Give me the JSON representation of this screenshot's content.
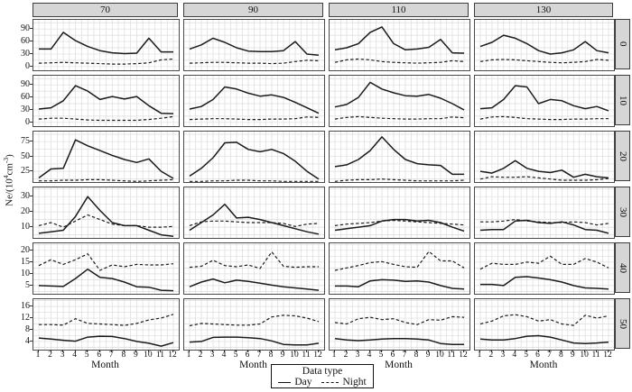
{
  "figure": {
    "ylabel": {
      "pre": "Ne/(10",
      "exp": "4",
      "mid": "cm",
      "exp2": "-3",
      "post": ")"
    },
    "xlabel": "Month",
    "col_headers": [
      "70",
      "90",
      "110",
      "130"
    ],
    "row_headers": [
      "0",
      "10",
      "20",
      "30",
      "40",
      "50"
    ],
    "legend": {
      "title": "Data type",
      "items": [
        {
          "label": "Day",
          "style": "solid"
        },
        {
          "label": "Night",
          "style": "dashed"
        }
      ]
    }
  },
  "colors": {
    "line": "#1b1b1b",
    "grid": "#dcdcdc",
    "strip_bg": "#d6d6d6",
    "panel_border": "#4a4a4a"
  },
  "chart_data": {
    "type": "line",
    "x": [
      1,
      2,
      3,
      4,
      5,
      6,
      7,
      8,
      9,
      10,
      11,
      12
    ],
    "xlabel": "Month",
    "ylabel": "Ne/(10^4 cm^-3)",
    "facet_cols": [
      "70",
      "90",
      "110",
      "130"
    ],
    "facet_rows": [
      "0",
      "10",
      "20",
      "30",
      "40",
      "50"
    ],
    "legend_position": "bottom",
    "grid": true,
    "row_axes": [
      {
        "ticks": [
          0,
          30,
          60,
          90
        ],
        "ylim": [
          -9,
          112
        ]
      },
      {
        "ticks": [
          0,
          30,
          60,
          90
        ],
        "ylim": [
          -9,
          112
        ]
      },
      {
        "ticks": [
          25,
          50,
          75
        ],
        "ylim": [
          7,
          92
        ]
      },
      {
        "ticks": [
          10,
          20,
          30
        ],
        "ylim": [
          3,
          36
        ]
      },
      {
        "ticks": [
          5,
          10,
          15,
          20
        ],
        "ylim": [
          1.5,
          23
        ]
      },
      {
        "ticks": [
          4,
          8,
          12,
          16
        ],
        "ylim": [
          1.2,
          18.5
        ]
      }
    ],
    "facets": [
      {
        "row": "0",
        "col": "70",
        "day": [
          42,
          42,
          82,
          62,
          48,
          38,
          33,
          31,
          32,
          68,
          35,
          35
        ],
        "night": [
          8,
          9,
          10,
          9,
          8,
          7,
          6,
          6,
          7,
          9,
          16,
          18
        ]
      },
      {
        "row": "0",
        "col": "90",
        "day": [
          42,
          52,
          68,
          58,
          45,
          37,
          36,
          36,
          38,
          60,
          30,
          27
        ],
        "night": [
          8,
          9,
          10,
          10,
          9,
          8,
          8,
          7,
          8,
          12,
          15,
          14
        ]
      },
      {
        "row": "0",
        "col": "110",
        "day": [
          40,
          45,
          55,
          82,
          95,
          55,
          40,
          42,
          46,
          65,
          33,
          32
        ],
        "night": [
          10,
          16,
          18,
          16,
          12,
          10,
          9,
          8,
          9,
          10,
          14,
          12
        ]
      },
      {
        "row": "0",
        "col": "130",
        "day": [
          48,
          58,
          75,
          68,
          55,
          38,
          30,
          33,
          40,
          60,
          38,
          33
        ],
        "night": [
          12,
          16,
          17,
          16,
          14,
          12,
          10,
          9,
          10,
          12,
          17,
          15
        ]
      },
      {
        "row": "10",
        "col": "70",
        "day": [
          32,
          35,
          52,
          88,
          75,
          55,
          62,
          56,
          62,
          40,
          22,
          21
        ],
        "night": [
          8,
          10,
          10,
          8,
          6,
          5,
          5,
          5,
          5,
          7,
          10,
          14
        ]
      },
      {
        "row": "10",
        "col": "90",
        "day": [
          32,
          38,
          55,
          85,
          80,
          70,
          63,
          66,
          60,
          48,
          35,
          22
        ],
        "night": [
          7,
          8,
          9,
          9,
          8,
          7,
          7,
          8,
          8,
          9,
          13,
          12
        ]
      },
      {
        "row": "10",
        "col": "110",
        "day": [
          37,
          43,
          60,
          96,
          80,
          71,
          64,
          63,
          67,
          58,
          45,
          30
        ],
        "night": [
          8,
          12,
          14,
          12,
          10,
          9,
          8,
          8,
          9,
          9,
          13,
          11
        ]
      },
      {
        "row": "10",
        "col": "130",
        "day": [
          33,
          35,
          55,
          88,
          85,
          45,
          55,
          52,
          40,
          33,
          38,
          28
        ],
        "night": [
          8,
          13,
          14,
          12,
          9,
          8,
          7,
          7,
          8,
          8,
          9,
          9
        ]
      },
      {
        "row": "20",
        "col": "70",
        "day": [
          14,
          29,
          30,
          78,
          68,
          60,
          52,
          45,
          40,
          46,
          25,
          13
        ],
        "night": [
          9,
          9,
          10,
          10,
          11,
          11,
          10,
          9,
          8,
          9,
          10,
          11
        ]
      },
      {
        "row": "20",
        "col": "90",
        "day": [
          17,
          30,
          48,
          73,
          74,
          62,
          58,
          62,
          55,
          42,
          25,
          12
        ],
        "night": [
          8,
          8,
          9,
          9,
          10,
          10,
          9,
          9,
          8,
          8,
          8,
          8
        ]
      },
      {
        "row": "20",
        "col": "110",
        "day": [
          33,
          36,
          45,
          60,
          83,
          62,
          45,
          38,
          36,
          35,
          20,
          20
        ],
        "night": [
          8,
          10,
          11,
          11,
          12,
          11,
          10,
          9,
          9,
          9,
          9,
          10
        ]
      },
      {
        "row": "20",
        "col": "130",
        "day": [
          25,
          22,
          30,
          43,
          30,
          25,
          23,
          27,
          15,
          20,
          16,
          14
        ],
        "night": [
          12,
          16,
          15,
          15,
          16,
          14,
          12,
          10,
          10,
          10,
          11,
          13
        ]
      },
      {
        "row": "30",
        "col": "70",
        "day": [
          6,
          7,
          8,
          17,
          30,
          21,
          13,
          11,
          11,
          8,
          5,
          4
        ],
        "night": [
          11,
          13,
          10,
          14,
          18,
          15,
          12,
          11,
          11,
          10,
          10,
          10.5
        ]
      },
      {
        "row": "30",
        "col": "90",
        "day": [
          8,
          13,
          18,
          25,
          16,
          16.5,
          15,
          13,
          11,
          9,
          7,
          5.5
        ],
        "night": [
          11,
          13.5,
          14,
          14,
          13.5,
          13,
          13,
          13,
          12.5,
          10.5,
          12,
          12.5
        ]
      },
      {
        "row": "30",
        "col": "110",
        "day": [
          8,
          9,
          10,
          11,
          14,
          15,
          15,
          14,
          14.5,
          13,
          10,
          7.5
        ],
        "night": [
          11,
          12,
          12.5,
          13,
          14,
          14.5,
          14,
          13.5,
          13,
          12.5,
          12,
          11.5
        ]
      },
      {
        "row": "30",
        "col": "130",
        "day": [
          8,
          8.5,
          8.5,
          14,
          14.5,
          13,
          12.5,
          13.5,
          11.5,
          8.5,
          8,
          6
        ],
        "night": [
          13.5,
          13.5,
          14,
          15,
          14,
          13.5,
          13,
          13,
          13.5,
          13,
          11.5,
          12.5
        ]
      },
      {
        "row": "40",
        "col": "70",
        "day": [
          5,
          4.8,
          4.6,
          8,
          12,
          8.5,
          8,
          6.5,
          4.5,
          4.3,
          3,
          2.8
        ],
        "night": [
          13.5,
          16,
          14,
          16,
          18.5,
          11.5,
          13.8,
          13,
          14,
          13.8,
          13.8,
          14.3
        ]
      },
      {
        "row": "40",
        "col": "90",
        "day": [
          4.5,
          6.5,
          7.8,
          6.2,
          7.3,
          6.8,
          6,
          5.2,
          4.5,
          4,
          3.5,
          3
        ],
        "night": [
          12.8,
          13.2,
          15.8,
          13.5,
          13,
          13.8,
          12.3,
          19.3,
          13.2,
          12.8,
          13,
          13
        ]
      },
      {
        "row": "40",
        "col": "110",
        "day": [
          4.8,
          4.8,
          4.5,
          7,
          7.5,
          7.3,
          6.8,
          7,
          6.5,
          5,
          3.8,
          3.5
        ],
        "night": [
          11.5,
          12.5,
          13.5,
          14.8,
          15.2,
          14,
          13,
          12.8,
          19.5,
          15.5,
          15.5,
          12.5
        ]
      },
      {
        "row": "40",
        "col": "130",
        "day": [
          5.5,
          5.5,
          5,
          8.5,
          8.8,
          8.2,
          7.5,
          6.5,
          5,
          4,
          3.8,
          3.5
        ],
        "night": [
          12,
          14.5,
          14,
          14,
          15,
          14.5,
          17.5,
          14,
          14,
          16.5,
          15,
          12.5
        ]
      },
      {
        "row": "50",
        "col": "70",
        "day": [
          5.2,
          4.8,
          4.4,
          4.1,
          5.5,
          5.8,
          5.7,
          5,
          4,
          3.4,
          2.4,
          3.6
        ],
        "night": [
          9.8,
          9.8,
          9.6,
          11.8,
          10.2,
          10,
          9.8,
          9.5,
          10.2,
          11.4,
          12,
          13.3
        ]
      },
      {
        "row": "50",
        "col": "90",
        "day": [
          3.8,
          4,
          5.4,
          5.5,
          5.5,
          5.3,
          5,
          4.2,
          3,
          2.8,
          2.8,
          3.4
        ],
        "night": [
          9.4,
          10.2,
          10,
          9.8,
          9.6,
          9.6,
          10,
          12.4,
          13,
          12.8,
          12,
          10.8
        ]
      },
      {
        "row": "50",
        "col": "110",
        "day": [
          5,
          4.5,
          4.3,
          4.5,
          4.8,
          5,
          5,
          4.8,
          4.5,
          3.3,
          3,
          3
        ],
        "night": [
          10.5,
          10,
          11.8,
          12.3,
          11.5,
          11.8,
          10.5,
          9.8,
          11.5,
          11.3,
          12.5,
          12.3
        ]
      },
      {
        "row": "50",
        "col": "130",
        "day": [
          4.8,
          4.5,
          4.5,
          5,
          5.8,
          6,
          5.5,
          4.5,
          3.5,
          3.3,
          3.5,
          3.8
        ],
        "night": [
          10,
          11,
          12.8,
          13.2,
          12.5,
          11,
          11.5,
          10,
          9.5,
          13,
          12,
          12.8
        ]
      }
    ]
  }
}
